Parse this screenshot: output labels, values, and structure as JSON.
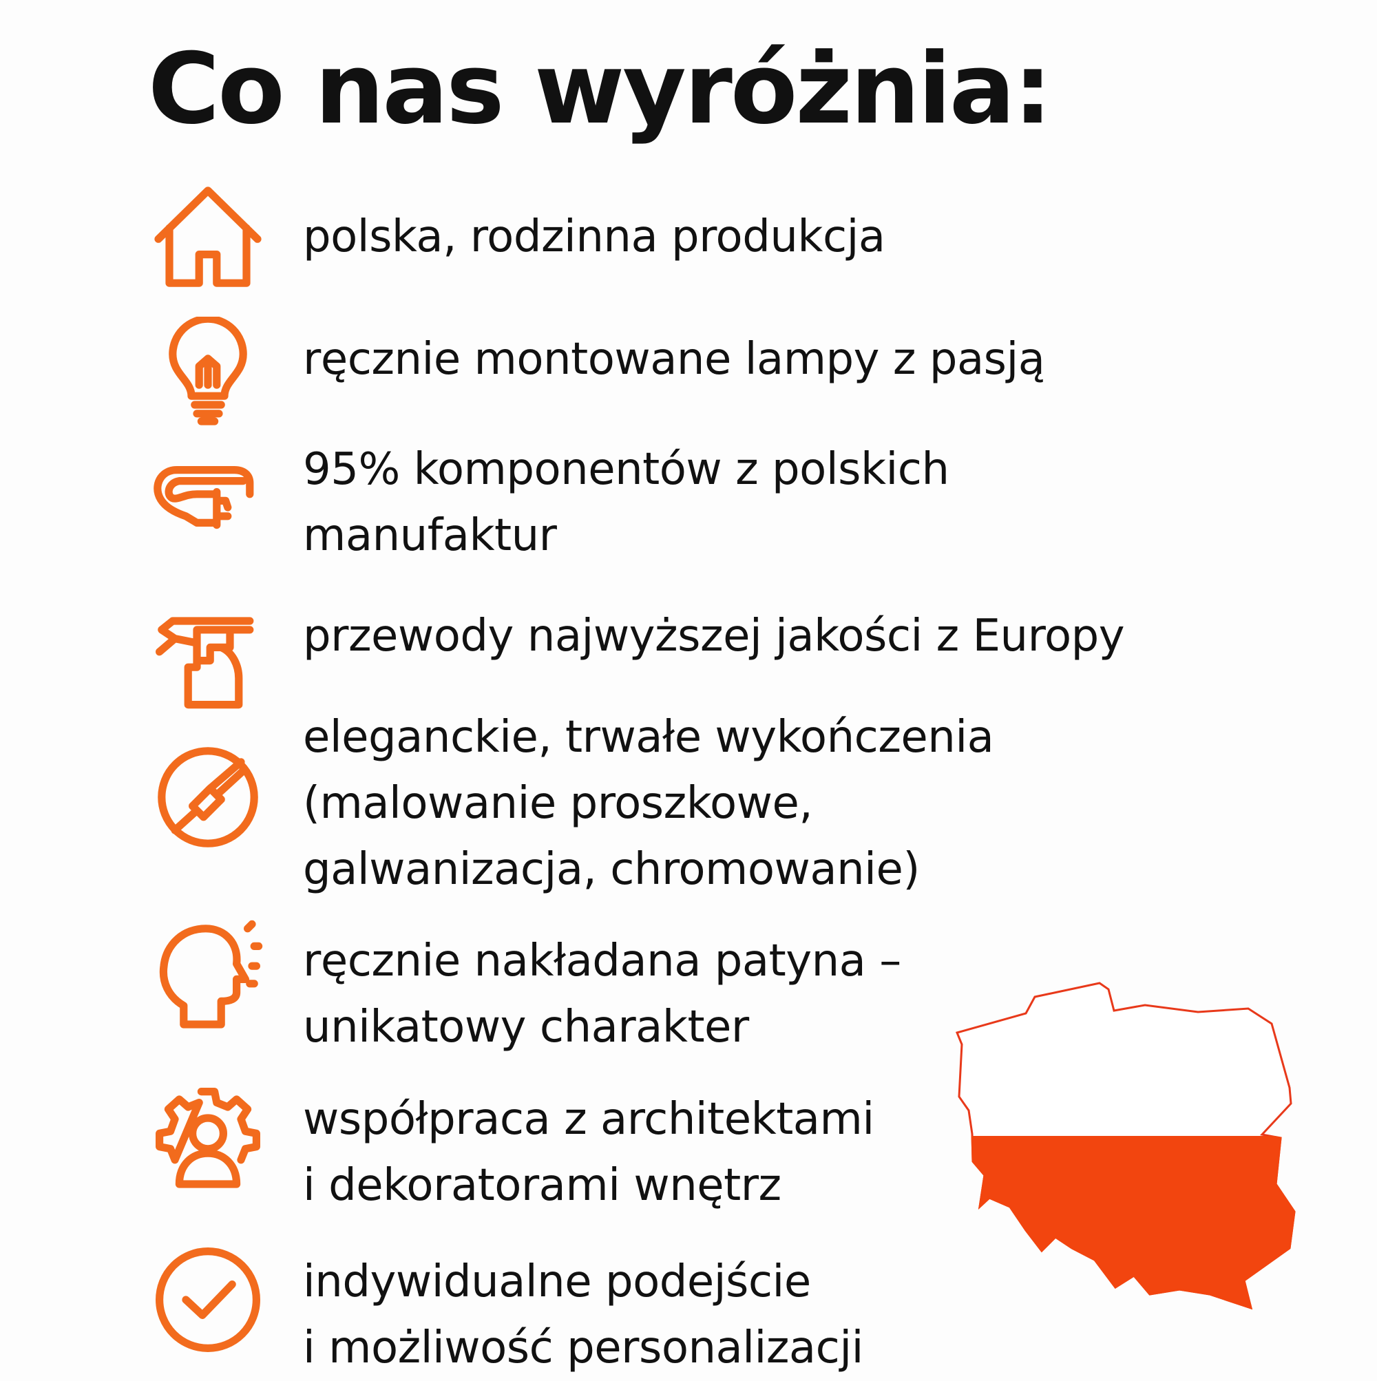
{
  "title": "Co nas wyróżnia:",
  "colors": {
    "accent": "#f26b1d",
    "map_red": "#f2450f",
    "text": "#111111"
  },
  "items": [
    {
      "icon": "house-icon",
      "lines": [
        "polska, rodzinna produkcja"
      ]
    },
    {
      "icon": "lightbulb-icon",
      "lines": [
        "ręcznie montowane lampy z pasją"
      ]
    },
    {
      "icon": "cable-plug-icon",
      "lines": [
        "95% komponentów z polskich",
        "manufaktur"
      ]
    },
    {
      "icon": "spray-bottle-icon",
      "lines": [
        "przewody najwyższej jakości z Europy"
      ]
    },
    {
      "icon": "paint-brush-circle-icon",
      "lines": [
        "eleganckie, trwałe wykończenia",
        "(malowanie proszkowe,",
        "galwanizacja, chromowanie)"
      ]
    },
    {
      "icon": "head-idea-icon",
      "lines": [
        "ręcznie nakładana patyna –",
        "unikatowy charakter"
      ]
    },
    {
      "icon": "gear-person-icon",
      "lines": [
        "współpraca z architektami",
        "i dekoratorami wnętrz"
      ]
    },
    {
      "icon": "check-circle-icon",
      "lines": [
        "indywidualne podejście",
        "i możliwość personalizacji"
      ]
    }
  ],
  "map": {
    "icon": "poland-flag-map-icon"
  }
}
